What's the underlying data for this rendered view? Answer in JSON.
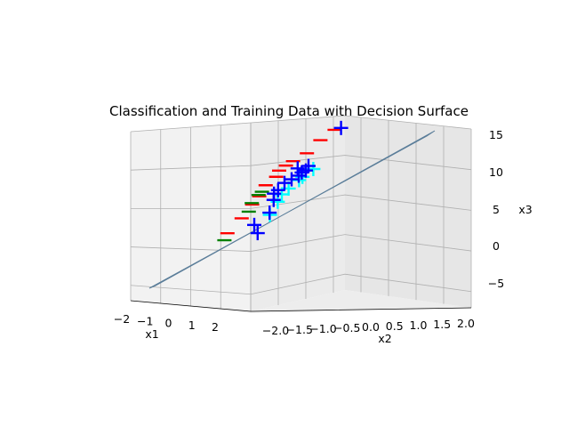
{
  "chart_data": {
    "type": "scatter",
    "projection": "3d",
    "title": "Classification and Training Data with Decision Surface",
    "xlabel": "x1",
    "ylabel": "x2",
    "zlabel": "x3",
    "x_ticks": [
      "−2",
      "−1",
      "0",
      "1",
      "2"
    ],
    "y_ticks": [
      "−2.0",
      "−1.5",
      "−1.0",
      "−0.5",
      "0.0",
      "0.5",
      "1.0",
      "1.5",
      "2.0"
    ],
    "z_ticks": [
      "15",
      "10",
      "5",
      "0",
      "−5"
    ],
    "xlim": [
      -2,
      2
    ],
    "ylim": [
      -2,
      2
    ],
    "zlim": [
      -7,
      15
    ],
    "grid": true,
    "legend": false,
    "decision_surface_color": "#5a7d99",
    "series": [
      {
        "marker": "minus",
        "color": "#ff0000",
        "points": [
          {
            "x": -1.4,
            "y": -1.9,
            "z": 0.5
          },
          {
            "x": -1.2,
            "y": -1.5,
            "z": 2.3
          },
          {
            "x": -1.0,
            "y": -1.2,
            "z": 4.0
          },
          {
            "x": -0.9,
            "y": -1.0,
            "z": 5.0
          },
          {
            "x": -0.6,
            "y": -0.8,
            "z": 6.4
          },
          {
            "x": -0.4,
            "y": -0.5,
            "z": 7.4
          },
          {
            "x": -0.2,
            "y": -0.4,
            "z": 8.2
          },
          {
            "x": 0.0,
            "y": -0.2,
            "z": 8.8
          },
          {
            "x": 0.1,
            "y": 0.0,
            "z": 9.3
          },
          {
            "x": 0.4,
            "y": 0.4,
            "z": 10.2
          },
          {
            "x": 0.8,
            "y": 0.8,
            "z": 11.8
          },
          {
            "x": 1.0,
            "y": 1.2,
            "z": 13.0
          }
        ]
      },
      {
        "marker": "minus",
        "color": "#008000",
        "points": [
          {
            "x": -1.6,
            "y": -2.0,
            "z": -0.4
          },
          {
            "x": -1.1,
            "y": -1.3,
            "z": 3.1
          },
          {
            "x": -0.9,
            "y": -1.2,
            "z": 4.2
          },
          {
            "x": -0.7,
            "y": -1.0,
            "z": 5.2
          },
          {
            "x": -0.6,
            "y": -0.9,
            "z": 5.6
          }
        ]
      },
      {
        "marker": "plus",
        "color": "#00ffff",
        "points": [
          {
            "x": 0.3,
            "y": -0.6,
            "z": 2.6
          },
          {
            "x": 0.2,
            "y": -0.4,
            "z": 4.2
          },
          {
            "x": 0.1,
            "y": -0.3,
            "z": 5.1
          },
          {
            "x": 0.3,
            "y": -0.1,
            "z": 5.8
          },
          {
            "x": 0.5,
            "y": 0.2,
            "z": 6.8
          },
          {
            "x": 0.6,
            "y": 0.3,
            "z": 7.2
          },
          {
            "x": 0.7,
            "y": 0.6,
            "z": 8.1
          }
        ]
      },
      {
        "marker": "plus",
        "color": "#0000ff",
        "points": [
          {
            "x": 0.6,
            "y": -0.9,
            "z": 0.4
          },
          {
            "x": 0.5,
            "y": -1.0,
            "z": 1.5
          },
          {
            "x": 0.4,
            "y": -0.6,
            "z": 2.9
          },
          {
            "x": 0.3,
            "y": -0.5,
            "z": 4.5
          },
          {
            "x": 0.2,
            "y": -0.5,
            "z": 5.3
          },
          {
            "x": 0.1,
            "y": -0.4,
            "z": 5.7
          },
          {
            "x": 0.4,
            "y": -0.2,
            "z": 6.6
          },
          {
            "x": 0.5,
            "y": 0.0,
            "z": 7.0
          },
          {
            "x": 0.6,
            "y": 0.2,
            "z": 7.4
          },
          {
            "x": 0.8,
            "y": 0.3,
            "z": 7.8
          },
          {
            "x": 0.7,
            "y": 0.4,
            "z": 8.0
          },
          {
            "x": 0.9,
            "y": 0.2,
            "z": 8.4
          },
          {
            "x": 1.0,
            "y": 0.5,
            "z": 8.6
          },
          {
            "x": 1.3,
            "y": 1.4,
            "z": 13.2
          }
        ]
      }
    ]
  }
}
